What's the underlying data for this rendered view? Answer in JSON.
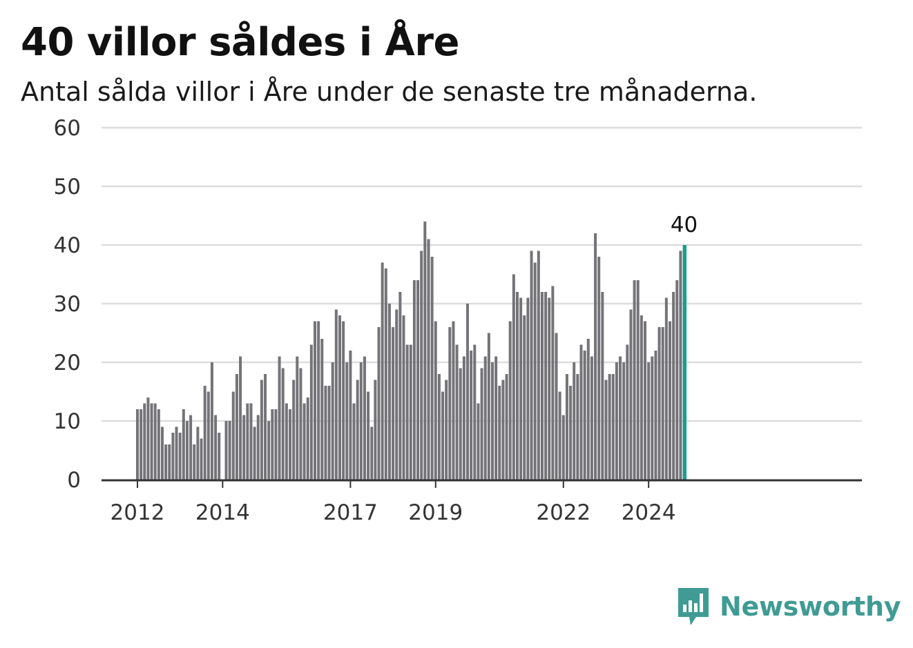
{
  "header": {
    "title": "40 villor såldes i Åre",
    "subtitle": "Antal sålda villor i Åre under de senaste tre månaderna."
  },
  "brand": {
    "name": "Newsworthy",
    "icon": "newsworthy-logo-icon",
    "color": "#3f9b94"
  },
  "colors": {
    "bar": "#747378",
    "highlight": "#1a9e8f",
    "grid": "#dddddd",
    "axis": "#333333"
  },
  "chart_data": {
    "type": "bar",
    "title": "40 villor såldes i Åre",
    "subtitle": "Antal sålda villor i Åre under de senaste tre månaderna.",
    "xlabel": "",
    "ylabel": "",
    "ylim": [
      0,
      60
    ],
    "yticks": [
      0,
      10,
      20,
      30,
      40,
      50,
      60
    ],
    "grid": true,
    "x_start": "2012-01",
    "x_tick_labels": [
      "2012",
      "2014",
      "2017",
      "2019",
      "2022",
      "2024"
    ],
    "x_tick_months": [
      "2012-01",
      "2014-01",
      "2017-01",
      "2019-01",
      "2022-01",
      "2024-01"
    ],
    "last_value_label": "40",
    "values": [
      12,
      12,
      13,
      14,
      13,
      13,
      12,
      9,
      6,
      6,
      8,
      9,
      8,
      12,
      10,
      11,
      6,
      9,
      7,
      16,
      15,
      20,
      11,
      8,
      0,
      10,
      10,
      15,
      18,
      21,
      11,
      13,
      13,
      9,
      11,
      17,
      18,
      10,
      12,
      12,
      21,
      19,
      13,
      12,
      17,
      21,
      19,
      13,
      14,
      23,
      27,
      27,
      24,
      16,
      16,
      20,
      29,
      28,
      27,
      20,
      22,
      13,
      17,
      20,
      21,
      15,
      9,
      17,
      26,
      37,
      36,
      30,
      26,
      29,
      32,
      28,
      23,
      23,
      34,
      34,
      39,
      44,
      41,
      38,
      27,
      18,
      15,
      17,
      26,
      27,
      23,
      19,
      21,
      30,
      22,
      23,
      13,
      19,
      21,
      25,
      20,
      21,
      16,
      17,
      18,
      27,
      35,
      32,
      31,
      28,
      31,
      39,
      37,
      39,
      32,
      32,
      31,
      33,
      25,
      15,
      11,
      18,
      16,
      20,
      18,
      23,
      22,
      24,
      21,
      42,
      38,
      32,
      17,
      18,
      18,
      20,
      21,
      20,
      23,
      29,
      34,
      34,
      28,
      27,
      20,
      21,
      22,
      26,
      26,
      31,
      27,
      32,
      34,
      39,
      40
    ]
  }
}
